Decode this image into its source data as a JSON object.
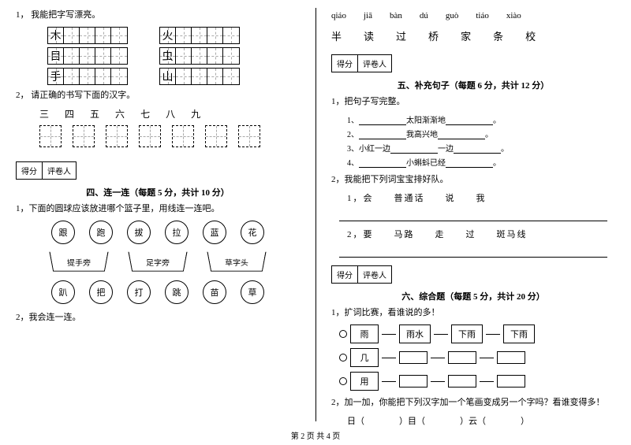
{
  "footer": "第 2 页  共 4 页",
  "left": {
    "q1": {
      "num": "1，",
      "text": "我能把字写漂亮。",
      "grids": [
        [
          "木",
          "火"
        ],
        [
          "目",
          "虫"
        ],
        [
          "手",
          "山"
        ]
      ]
    },
    "q2": {
      "num": "2，",
      "text": "请正确的书写下面的汉字。",
      "chars": [
        "三",
        "四",
        "五",
        "六",
        "七",
        "八",
        "九"
      ]
    },
    "score": {
      "a": "得分",
      "b": "评卷人"
    },
    "sec4": {
      "title": "四、连一连（每题 5 分，共计 10 分）",
      "q1": "1，下面的圆球应该放进哪个篮子里，用线连一连吧。",
      "row1": [
        "跟",
        "跑",
        "拔",
        "拉",
        "蓝",
        "花"
      ],
      "traps": [
        "提手旁",
        "足字旁",
        "草字头"
      ],
      "row2": [
        "趴",
        "把",
        "打",
        "跳",
        "苗",
        "草"
      ],
      "q2": "2，我会连一连。"
    }
  },
  "right": {
    "pinyin": [
      "qiáo",
      "jiā",
      "bàn",
      "dú",
      "guò",
      "tiáo",
      "xiào"
    ],
    "chars": [
      "半",
      "读",
      "过",
      "桥",
      "家",
      "条",
      "校"
    ],
    "score": {
      "a": "得分",
      "b": "评卷人"
    },
    "sec5": {
      "title": "五、补充句子（每题 6 分，共计 12 分）",
      "q1": "1，把句子写完整。",
      "lines": [
        {
          "pre": "1、",
          "post": "太阳渐渐地"
        },
        {
          "pre": "2、",
          "post": "我高兴地"
        },
        {
          "pre": "3、小红一边",
          "mid": "一边",
          "end": "。"
        },
        {
          "pre": "4、",
          "post": "小蝌蚪已经",
          "end": "。"
        }
      ],
      "q2": "2，我能把下列词宝宝排好队。",
      "s1": "1，会　　普通话　　说　　我",
      "s2": "2，要　　马路　　走　　过　　斑马线"
    },
    "sec6": {
      "title": "六、综合题（每题 5 分，共计 20 分）",
      "q1": "1，扩词比赛，看谁说的多！",
      "chains": [
        {
          "head": "雨",
          "items": [
            "雨水",
            "下雨",
            "下雨"
          ]
        },
        {
          "head": "几",
          "items": [
            "",
            "",
            ""
          ]
        },
        {
          "head": "用",
          "items": [
            "",
            "",
            ""
          ]
        }
      ],
      "q2": "2，加一加，你能把下列汉字加一个笔画变成另一个字吗？看谁变得多！",
      "add": "日（　　　　）目（　　　　）云（　　　　）"
    }
  }
}
